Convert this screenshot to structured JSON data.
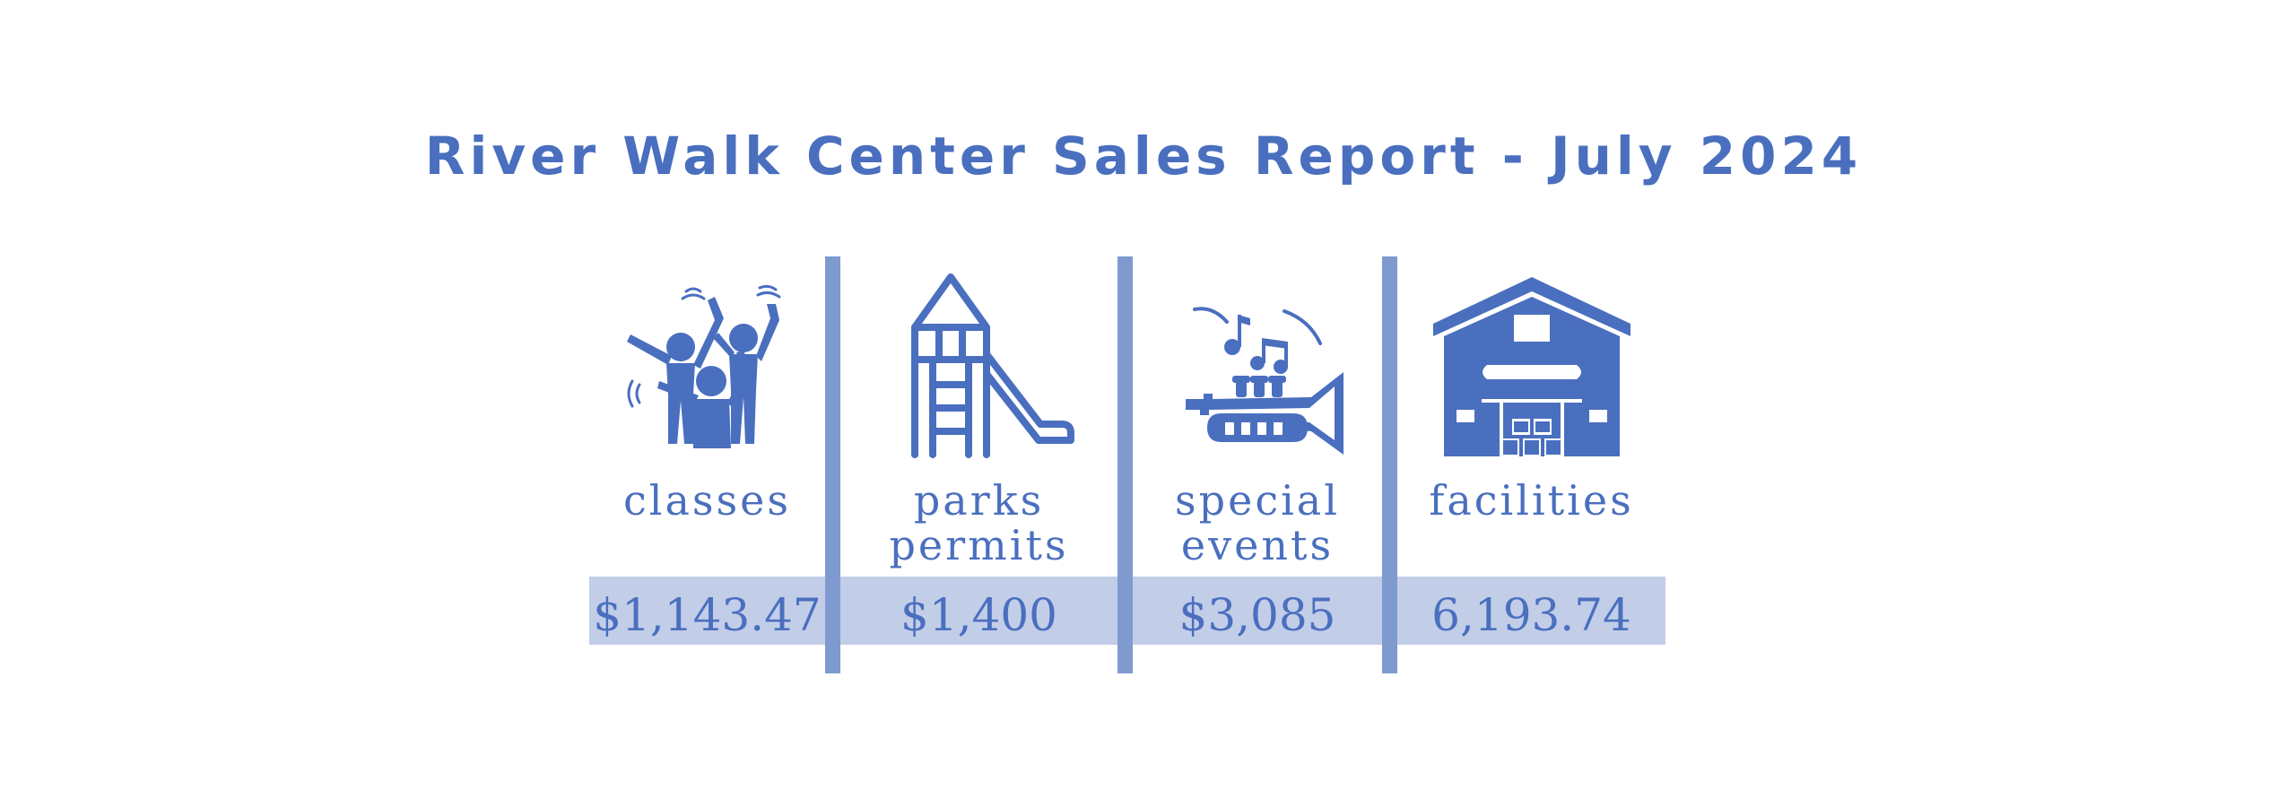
{
  "colors": {
    "primary": "#4a6fbf",
    "divider": "#7f9acf",
    "band": "#c2cde8",
    "background": "#ffffff"
  },
  "chart_data": {
    "type": "table",
    "title": "River Walk Center Sales Report - July 2024",
    "categories": [
      "classes",
      "parks\npermits",
      "special\nevents",
      "facilities"
    ],
    "values": [
      1143.47,
      1400,
      3085,
      6193.74
    ],
    "value_labels": [
      "$1,143.47",
      "$1,400",
      "$3,085",
      "6,193.74"
    ],
    "icons": [
      "people-dancing-icon",
      "playground-slide-icon",
      "trumpet-music-icon",
      "building-icon"
    ]
  }
}
